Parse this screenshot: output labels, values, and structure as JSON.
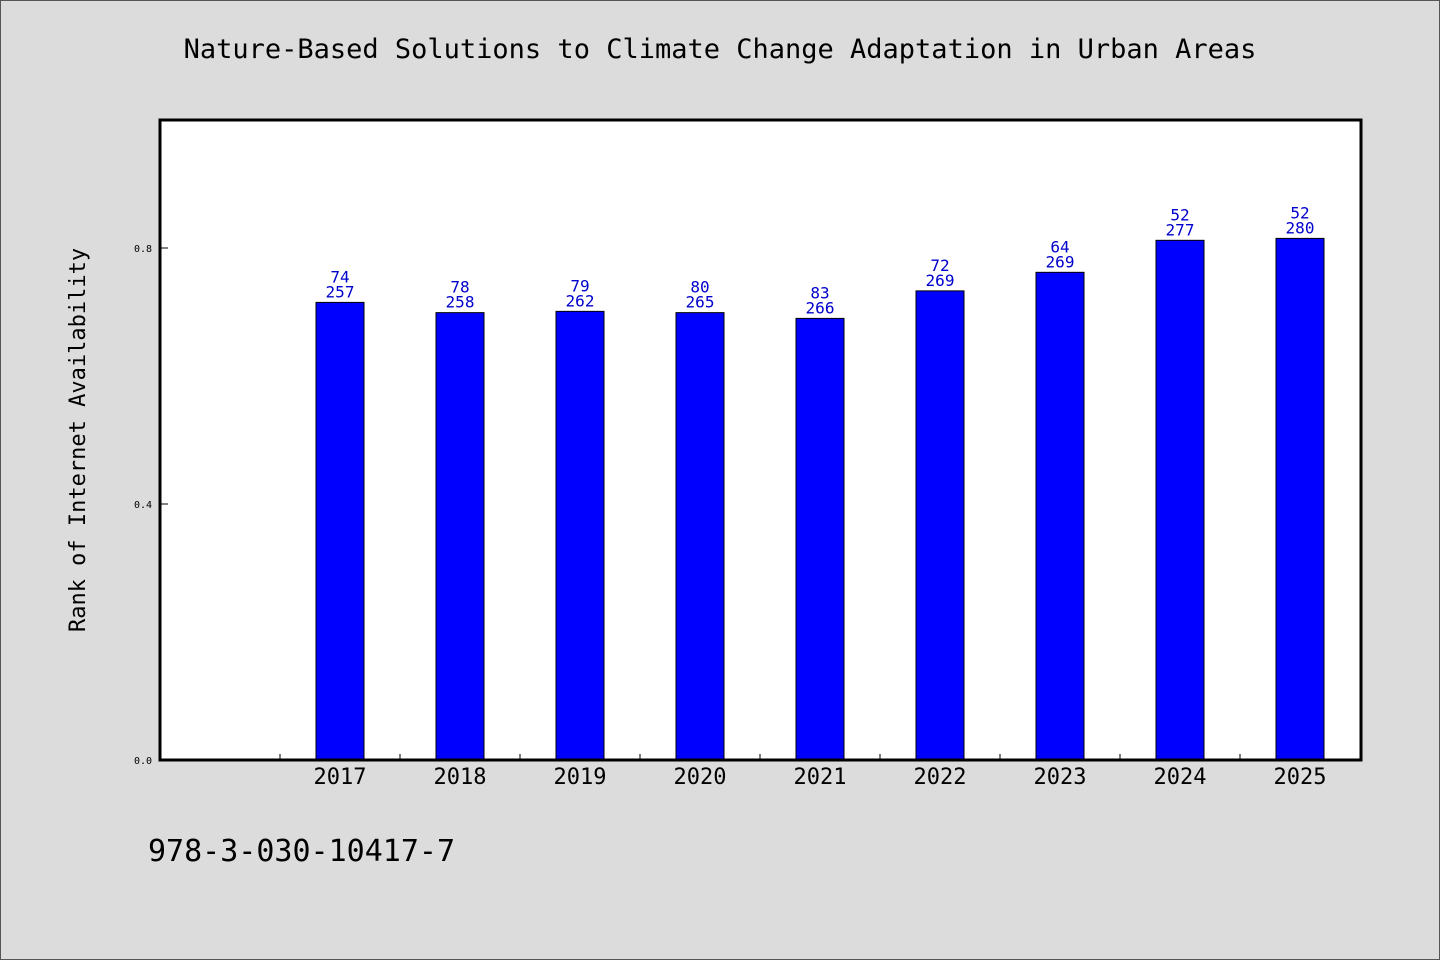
{
  "isbn": "978-3-030-10417-7",
  "chart_data": {
    "type": "bar",
    "title": "Nature-Based Solutions to Climate Change Adaptation in Urban Areas",
    "xlabel": "",
    "ylabel": "Rank of Internet Availability",
    "categories": [
      "2017",
      "2018",
      "2019",
      "2020",
      "2021",
      "2022",
      "2023",
      "2024",
      "2025"
    ],
    "values": [
      0.715,
      0.699,
      0.701,
      0.699,
      0.69,
      0.733,
      0.762,
      0.812,
      0.815
    ],
    "label_top": [
      "74",
      "78",
      "79",
      "80",
      "83",
      "72",
      "64",
      "52",
      "52"
    ],
    "label_bottom": [
      "257",
      "258",
      "262",
      "265",
      "266",
      "269",
      "269",
      "277",
      "280"
    ],
    "ylim": [
      0,
      1.0
    ],
    "yticks": [
      "0.0",
      "0.4",
      "0.8"
    ],
    "ytick_values": [
      0.0,
      0.4,
      0.8
    ],
    "grid": false,
    "legend": "none",
    "colors": {
      "bar": "#0000ff",
      "bar_edge": "#000000",
      "data_label": "#0000cc",
      "background": "#dcdcdc",
      "plot_bg": "#ffffff"
    }
  }
}
